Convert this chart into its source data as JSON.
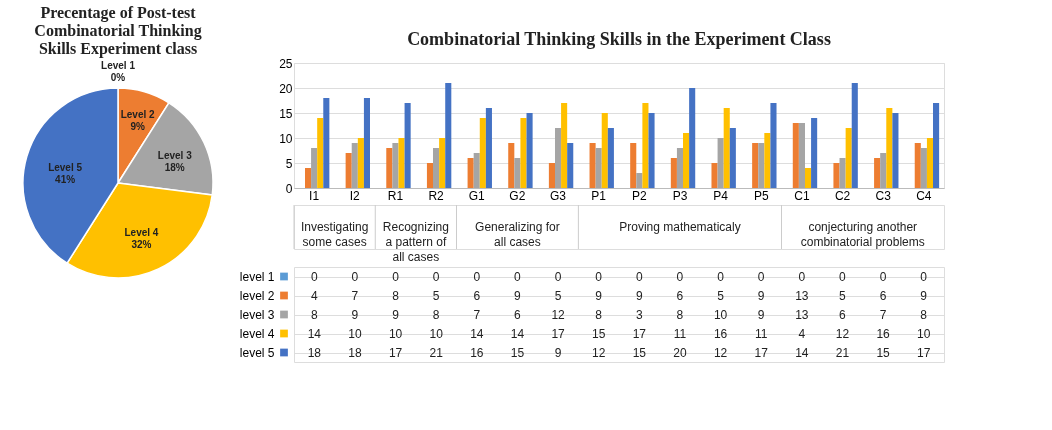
{
  "chart_data": [
    {
      "type": "pie",
      "title": "Precentage of Post-test Combinatorial Thinking Skills Experiment class",
      "categories": [
        "Level 1",
        "Level 2",
        "Level 3",
        "Level 4",
        "Level 5"
      ],
      "values": [
        0,
        9,
        18,
        32,
        41
      ],
      "value_labels": [
        "0%",
        "9%",
        "18%",
        "32%",
        "41%"
      ],
      "colors": [
        "#5b9bd5",
        "#ed7d31",
        "#a5a5a5",
        "#ffc000",
        "#4472c4"
      ]
    },
    {
      "type": "bar",
      "title": "Combinatorial Thinking Skills in the Experiment Class",
      "categories": [
        "I1",
        "I2",
        "R1",
        "R2",
        "G1",
        "G2",
        "G3",
        "P1",
        "P2",
        "P3",
        "P4",
        "P5",
        "C1",
        "C2",
        "C3",
        "C4"
      ],
      "series": [
        {
          "name": "level 1",
          "color": "#5b9bd5",
          "values": [
            0,
            0,
            0,
            0,
            0,
            0,
            0,
            0,
            0,
            0,
            0,
            0,
            0,
            0,
            0,
            0
          ]
        },
        {
          "name": "level 2",
          "color": "#ed7d31",
          "values": [
            4,
            7,
            8,
            5,
            6,
            9,
            5,
            9,
            9,
            6,
            5,
            9,
            13,
            5,
            6,
            9
          ]
        },
        {
          "name": "level 3",
          "color": "#a5a5a5",
          "values": [
            8,
            9,
            9,
            8,
            7,
            6,
            12,
            8,
            3,
            8,
            10,
            9,
            13,
            6,
            7,
            8
          ]
        },
        {
          "name": "level 4",
          "color": "#ffc000",
          "values": [
            14,
            10,
            10,
            10,
            14,
            14,
            17,
            15,
            17,
            11,
            16,
            11,
            4,
            12,
            16,
            10
          ]
        },
        {
          "name": "level 5",
          "color": "#4472c4",
          "values": [
            18,
            18,
            17,
            21,
            16,
            15,
            9,
            12,
            15,
            20,
            12,
            17,
            14,
            21,
            15,
            17
          ]
        }
      ],
      "ylim": [
        0,
        25
      ],
      "yticks": [
        0,
        5,
        10,
        15,
        20,
        25
      ],
      "grid": "y",
      "data_labels": true,
      "legend": "bottom",
      "annotations": [
        "Investigating some cases",
        "Recognizing a pattern of all cases",
        "Generalizing for all cases",
        "Proving mathematicaly",
        "conjecturing another combinatorial problems"
      ]
    }
  ]
}
